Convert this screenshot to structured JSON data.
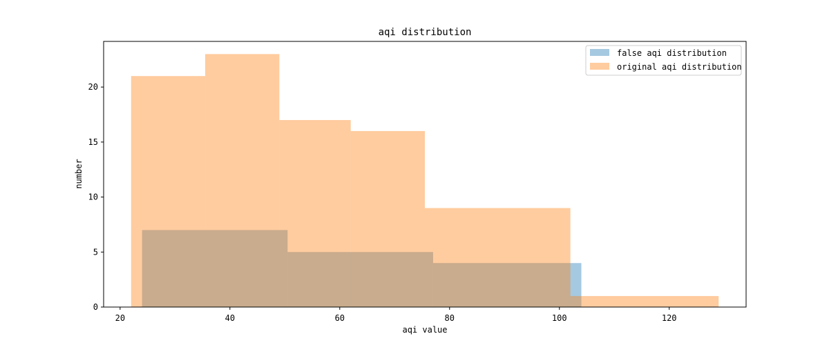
{
  "chart_data": {
    "type": "bar",
    "title": "aqi distribution",
    "xlabel": "aqi value",
    "ylabel": "number",
    "xlim": [
      17,
      134
    ],
    "ylim": [
      0,
      24.15
    ],
    "xticks": [
      20,
      40,
      60,
      80,
      100,
      120
    ],
    "yticks": [
      0,
      5,
      10,
      15,
      20
    ],
    "grid": false,
    "legend_position": "top-right",
    "series": [
      {
        "name": "false aqi distribution",
        "color": "#1f77b4",
        "opacity": 0.4,
        "bins": [
          {
            "x0": 24,
            "x1": 50.5,
            "value": 7
          },
          {
            "x0": 50.5,
            "x1": 77,
            "value": 5
          },
          {
            "x0": 77,
            "x1": 104,
            "value": 4
          }
        ]
      },
      {
        "name": "original aqi distribution",
        "color": "#ff7f0e",
        "opacity": 0.4,
        "bins": [
          {
            "x0": 22,
            "x1": 35.5,
            "value": 21
          },
          {
            "x0": 35.5,
            "x1": 49,
            "value": 23
          },
          {
            "x0": 49,
            "x1": 62,
            "value": 17
          },
          {
            "x0": 62,
            "x1": 75.5,
            "value": 16
          },
          {
            "x0": 75.5,
            "x1": 102,
            "value": 9
          },
          {
            "x0": 102,
            "x1": 129,
            "value": 1
          }
        ]
      }
    ]
  }
}
